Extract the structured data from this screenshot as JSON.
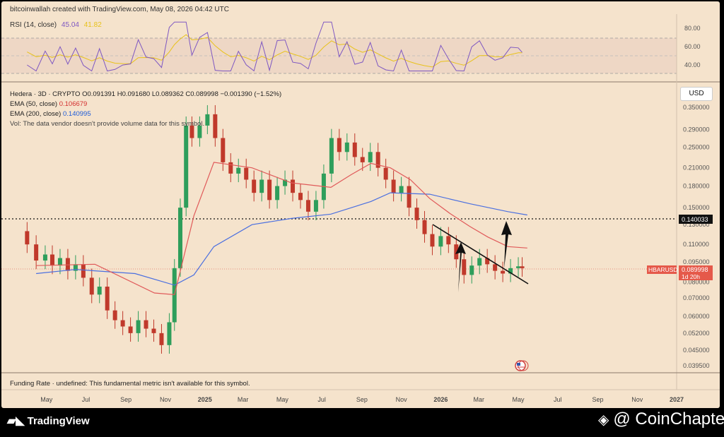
{
  "header": {
    "credit": "bitcoinwallah created with TradingView.com, May 08, 2026 04:42 UTC"
  },
  "rsi_legend": {
    "label": "RSI (14, close)",
    "rsi_value": "45.04",
    "ma_value": "41.82",
    "ticks": [
      "80.00",
      "60.00",
      "40.00"
    ]
  },
  "symbol_legend": {
    "line1": "Hedera · 3D · CRYPTO  O0.091391 H0.091680 L0.089362 C0.089998 −0.001390 (−1.52%)",
    "ema50_label": "EMA (50, close)",
    "ema50_value": "0.106679",
    "ema200_label": "EMA (200, close)",
    "ema200_value": "0.140995",
    "vol_note": "Vol: The data vendor doesn't provide volume data for this symbol."
  },
  "funding_note": "Funding Rate · undefined: This fundamental metric isn't available for this symbol.",
  "currency": "USD",
  "price_ticks": [
    "0.350000",
    "0.290000",
    "0.250000",
    "0.210000",
    "0.180000",
    "0.150000",
    "0.130000",
    "0.110000",
    "0.095000",
    "0.080000",
    "0.070000",
    "0.060000",
    "0.052000",
    "0.045000",
    "0.039500"
  ],
  "time_ticks": [
    "May",
    "Jul",
    "Sep",
    "Nov",
    "2025",
    "Mar",
    "May",
    "Jul",
    "Sep",
    "Nov",
    "2026",
    "Mar",
    "May",
    "Jul",
    "Sep",
    "Nov",
    "2027"
  ],
  "markers": {
    "level_label": "0.140033",
    "symbol_label": "HBARUSD",
    "last_price": "0.089998",
    "countdown": "1d 20h"
  },
  "footer": {
    "tradingview": "TradingView",
    "coinchapter": "@ CoinChapter"
  },
  "colors": {
    "background": "#f5e3cc",
    "up": "#2e9e5b",
    "down": "#c0392b",
    "ema50": "#e05a5a",
    "ema200": "#4a6fe0",
    "rsi": "#7e57c2",
    "rsi_ma": "#e8c21a"
  },
  "chart_data": {
    "type": "candlestick",
    "scale": "log",
    "ylim": [
      0.0395,
      0.35
    ],
    "series": [
      {
        "name": "EMA (50, close)",
        "points": [
          [
            "2024-04",
            0.092
          ],
          [
            "2024-07",
            0.093
          ],
          [
            "2024-10",
            0.073
          ],
          [
            "2024-11",
            0.072
          ],
          [
            "2024-12",
            0.14
          ],
          [
            "2025-01",
            0.22
          ],
          [
            "2025-03",
            0.21
          ],
          [
            "2025-05",
            0.185
          ],
          [
            "2025-07",
            0.178
          ],
          [
            "2025-08",
            0.198
          ],
          [
            "2025-09",
            0.218
          ],
          [
            "2025-10",
            0.21
          ],
          [
            "2025-11",
            0.19
          ],
          [
            "2025-12",
            0.162
          ],
          [
            "2026-01",
            0.143
          ],
          [
            "2026-02",
            0.128
          ],
          [
            "2026-03",
            0.117
          ],
          [
            "2026-04",
            0.108
          ],
          [
            "2026-05",
            0.1067
          ]
        ]
      },
      {
        "name": "EMA (200, close)",
        "points": [
          [
            "2024-04",
            0.086
          ],
          [
            "2024-06",
            0.089
          ],
          [
            "2024-09",
            0.086
          ],
          [
            "2024-11",
            0.078
          ],
          [
            "2024-12",
            0.085
          ],
          [
            "2025-01",
            0.108
          ],
          [
            "2025-03",
            0.13
          ],
          [
            "2025-05",
            0.137
          ],
          [
            "2025-07",
            0.142
          ],
          [
            "2025-09",
            0.158
          ],
          [
            "2025-10",
            0.17
          ],
          [
            "2025-12",
            0.168
          ],
          [
            "2026-02",
            0.155
          ],
          [
            "2026-04",
            0.145
          ],
          [
            "2026-05",
            0.141
          ]
        ]
      }
    ],
    "candles": [
      [
        "2024-04-01",
        0.123,
        0.11
      ],
      [
        "2024-04-15",
        0.11,
        0.096
      ],
      [
        "2024-04-29",
        0.096,
        0.101
      ],
      [
        "2024-05-10",
        0.101,
        0.092
      ],
      [
        "2024-05-22",
        0.092,
        0.098
      ],
      [
        "2024-06-03",
        0.098,
        0.088
      ],
      [
        "2024-06-15",
        0.088,
        0.093
      ],
      [
        "2024-06-27",
        0.093,
        0.083
      ],
      [
        "2024-07-10",
        0.083,
        0.072
      ],
      [
        "2024-07-22",
        0.072,
        0.077
      ],
      [
        "2024-08-03",
        0.077,
        0.063
      ],
      [
        "2024-08-15",
        0.063,
        0.058
      ],
      [
        "2024-08-27",
        0.058,
        0.055
      ],
      [
        "2024-09-08",
        0.055,
        0.052
      ],
      [
        "2024-09-20",
        0.052,
        0.058
      ],
      [
        "2024-10-02",
        0.058,
        0.054
      ],
      [
        "2024-10-14",
        0.054,
        0.052
      ],
      [
        "2024-10-26",
        0.052,
        0.047
      ],
      [
        "2024-11-07",
        0.047,
        0.057
      ],
      [
        "2024-11-15",
        0.057,
        0.09
      ],
      [
        "2024-11-24",
        0.09,
        0.15
      ],
      [
        "2024-12-03",
        0.15,
        0.3
      ],
      [
        "2024-12-12",
        0.3,
        0.27
      ],
      [
        "2024-12-24",
        0.27,
        0.3
      ],
      [
        "2025-01-05",
        0.3,
        0.33
      ],
      [
        "2025-01-17",
        0.33,
        0.27
      ],
      [
        "2025-01-29",
        0.27,
        0.22
      ],
      [
        "2025-02-10",
        0.22,
        0.2
      ],
      [
        "2025-02-22",
        0.2,
        0.21
      ],
      [
        "2025-03-06",
        0.21,
        0.19
      ],
      [
        "2025-03-18",
        0.19,
        0.17
      ],
      [
        "2025-03-30",
        0.17,
        0.19
      ],
      [
        "2025-04-11",
        0.19,
        0.16
      ],
      [
        "2025-04-23",
        0.16,
        0.18
      ],
      [
        "2025-05-05",
        0.18,
        0.19
      ],
      [
        "2025-05-17",
        0.19,
        0.17
      ],
      [
        "2025-05-29",
        0.17,
        0.16
      ],
      [
        "2025-06-10",
        0.16,
        0.145
      ],
      [
        "2025-06-22",
        0.145,
        0.16
      ],
      [
        "2025-07-04",
        0.16,
        0.2
      ],
      [
        "2025-07-16",
        0.2,
        0.27
      ],
      [
        "2025-07-28",
        0.27,
        0.24
      ],
      [
        "2025-08-09",
        0.24,
        0.26
      ],
      [
        "2025-08-21",
        0.26,
        0.23
      ],
      [
        "2025-09-02",
        0.23,
        0.22
      ],
      [
        "2025-09-14",
        0.22,
        0.24
      ],
      [
        "2025-09-26",
        0.24,
        0.21
      ],
      [
        "2025-10-08",
        0.21,
        0.19
      ],
      [
        "2025-10-20",
        0.19,
        0.17
      ],
      [
        "2025-11-01",
        0.17,
        0.18
      ],
      [
        "2025-11-13",
        0.18,
        0.15
      ],
      [
        "2025-11-25",
        0.15,
        0.135
      ],
      [
        "2025-12-07",
        0.135,
        0.12
      ],
      [
        "2025-12-19",
        0.12,
        0.108
      ],
      [
        "2026-01-01",
        0.108,
        0.118
      ],
      [
        "2026-01-13",
        0.118,
        0.11
      ],
      [
        "2026-01-25",
        0.11,
        0.097
      ],
      [
        "2026-02-06",
        0.097,
        0.085
      ],
      [
        "2026-02-18",
        0.085,
        0.092
      ],
      [
        "2026-03-02",
        0.092,
        0.098
      ],
      [
        "2026-03-14",
        0.098,
        0.093
      ],
      [
        "2026-03-26",
        0.093,
        0.088
      ],
      [
        "2026-04-07",
        0.088,
        0.086
      ],
      [
        "2026-04-19",
        0.086,
        0.09
      ],
      [
        "2026-05-01",
        0.09,
        0.0914
      ],
      [
        "2026-05-07",
        0.0914,
        0.089998
      ]
    ],
    "rsi": {
      "ylim": [
        20,
        90
      ],
      "levels": [
        70,
        50,
        30
      ],
      "last": 45.04,
      "ma_last": 41.82
    }
  }
}
